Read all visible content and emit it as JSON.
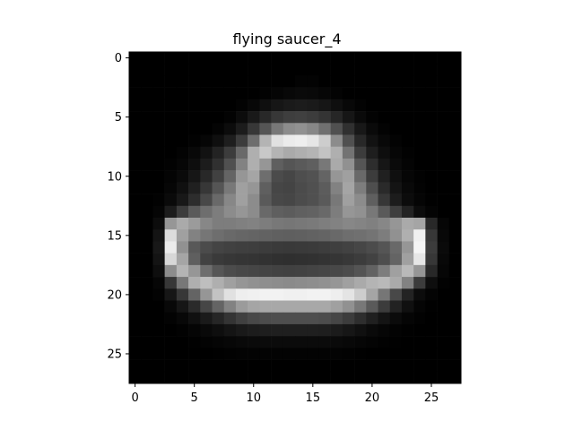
{
  "chart_data": {
    "type": "heatmap",
    "title": "flying saucer_4",
    "xlabel": "",
    "ylabel": "",
    "colormap": "gray",
    "rows": 28,
    "cols": 28,
    "xlim": [
      -0.5,
      27.5
    ],
    "ylim": [
      27.5,
      -0.5
    ],
    "y_axis_inverted": true,
    "grid": false,
    "xticks": [
      0,
      5,
      10,
      15,
      20,
      25
    ],
    "yticks": [
      0,
      5,
      10,
      15,
      20,
      25
    ],
    "matrix": [
      [
        0,
        0,
        0,
        0,
        0,
        0,
        0,
        0,
        0,
        0,
        0,
        0,
        0,
        0,
        0,
        0,
        0,
        0,
        0,
        0,
        0,
        0,
        0,
        0,
        0,
        0,
        0,
        0
      ],
      [
        0,
        0,
        0,
        0,
        0,
        0,
        0,
        0,
        0,
        0,
        0,
        0,
        0,
        0,
        0,
        0,
        0,
        0,
        0,
        0,
        0,
        0,
        0,
        0,
        0,
        0,
        0,
        0
      ],
      [
        0,
        0,
        0,
        0,
        0,
        0,
        0,
        0,
        0,
        0,
        0,
        0,
        0,
        0,
        3,
        3,
        0,
        0,
        0,
        0,
        0,
        0,
        0,
        0,
        0,
        0,
        0,
        0
      ],
      [
        0,
        0,
        0,
        0,
        0,
        0,
        0,
        0,
        0,
        0,
        0,
        2,
        5,
        8,
        10,
        9,
        6,
        3,
        0,
        0,
        0,
        0,
        0,
        0,
        0,
        0,
        0,
        0
      ],
      [
        0,
        0,
        0,
        0,
        0,
        0,
        0,
        0,
        0,
        3,
        8,
        15,
        22,
        26,
        28,
        26,
        22,
        15,
        8,
        3,
        0,
        0,
        0,
        0,
        0,
        0,
        0,
        0
      ],
      [
        0,
        0,
        0,
        0,
        0,
        0,
        0,
        0,
        3,
        12,
        25,
        40,
        55,
        62,
        64,
        60,
        52,
        38,
        22,
        10,
        3,
        0,
        0,
        0,
        0,
        0,
        0,
        0
      ],
      [
        0,
        0,
        0,
        0,
        0,
        0,
        0,
        4,
        12,
        28,
        55,
        85,
        120,
        140,
        145,
        135,
        112,
        80,
        48,
        24,
        10,
        3,
        0,
        0,
        0,
        0,
        0,
        0
      ],
      [
        0,
        0,
        0,
        0,
        0,
        2,
        6,
        15,
        30,
        60,
        110,
        180,
        225,
        235,
        238,
        230,
        205,
        140,
        80,
        40,
        18,
        8,
        3,
        0,
        0,
        0,
        0,
        0
      ],
      [
        0,
        0,
        0,
        0,
        3,
        8,
        18,
        35,
        60,
        105,
        175,
        200,
        180,
        170,
        175,
        180,
        195,
        175,
        115,
        60,
        30,
        14,
        6,
        2,
        0,
        0,
        0,
        0
      ],
      [
        0,
        0,
        0,
        2,
        6,
        14,
        28,
        48,
        80,
        130,
        175,
        150,
        95,
        85,
        90,
        95,
        120,
        170,
        145,
        85,
        45,
        22,
        10,
        4,
        0,
        0,
        0,
        0
      ],
      [
        0,
        0,
        0,
        4,
        10,
        22,
        40,
        65,
        100,
        150,
        165,
        110,
        75,
        70,
        78,
        82,
        100,
        150,
        160,
        105,
        60,
        32,
        15,
        6,
        2,
        0,
        0,
        0
      ],
      [
        0,
        0,
        0,
        6,
        16,
        32,
        55,
        85,
        120,
        160,
        150,
        95,
        70,
        68,
        75,
        80,
        92,
        130,
        165,
        125,
        78,
        42,
        20,
        9,
        3,
        0,
        0,
        0
      ],
      [
        0,
        0,
        2,
        10,
        24,
        45,
        72,
        105,
        135,
        160,
        140,
        90,
        72,
        70,
        76,
        80,
        90,
        120,
        160,
        140,
        95,
        55,
        28,
        12,
        5,
        1,
        0,
        0
      ],
      [
        0,
        0,
        5,
        28,
        60,
        90,
        110,
        125,
        140,
        150,
        140,
        105,
        95,
        92,
        96,
        98,
        105,
        125,
        150,
        145,
        120,
        90,
        62,
        35,
        12,
        4,
        0,
        0
      ],
      [
        0,
        0,
        12,
        150,
        170,
        155,
        135,
        125,
        125,
        128,
        130,
        125,
        120,
        118,
        120,
        122,
        126,
        130,
        135,
        132,
        128,
        135,
        150,
        170,
        165,
        40,
        6,
        0
      ],
      [
        0,
        0,
        20,
        220,
        160,
        130,
        118,
        110,
        105,
        102,
        100,
        98,
        96,
        95,
        96,
        98,
        100,
        105,
        110,
        112,
        116,
        125,
        145,
        175,
        240,
        55,
        8,
        0
      ],
      [
        0,
        0,
        24,
        235,
        145,
        88,
        75,
        68,
        65,
        63,
        62,
        60,
        58,
        57,
        58,
        59,
        61,
        63,
        66,
        70,
        76,
        85,
        105,
        150,
        245,
        60,
        10,
        0
      ],
      [
        0,
        0,
        20,
        215,
        165,
        95,
        66,
        58,
        55,
        53,
        52,
        50,
        48,
        47,
        48,
        49,
        51,
        53,
        56,
        60,
        66,
        78,
        100,
        160,
        230,
        55,
        8,
        0
      ],
      [
        0,
        0,
        14,
        140,
        180,
        150,
        110,
        86,
        76,
        72,
        70,
        68,
        66,
        65,
        66,
        68,
        70,
        72,
        76,
        84,
        98,
        125,
        160,
        185,
        150,
        40,
        6,
        0
      ],
      [
        0,
        0,
        6,
        55,
        120,
        175,
        190,
        175,
        160,
        150,
        145,
        142,
        140,
        138,
        140,
        142,
        145,
        150,
        160,
        170,
        180,
        185,
        170,
        130,
        60,
        14,
        2,
        0
      ],
      [
        0,
        0,
        3,
        22,
        55,
        100,
        150,
        195,
        225,
        238,
        240,
        242,
        242,
        240,
        240,
        242,
        242,
        238,
        228,
        205,
        165,
        118,
        72,
        35,
        12,
        4,
        0,
        0
      ],
      [
        0,
        0,
        0,
        8,
        22,
        42,
        70,
        100,
        130,
        155,
        165,
        168,
        168,
        168,
        168,
        168,
        168,
        160,
        145,
        120,
        90,
        60,
        34,
        16,
        5,
        1,
        0,
        0
      ],
      [
        0,
        0,
        0,
        3,
        8,
        16,
        26,
        38,
        52,
        64,
        72,
        76,
        78,
        78,
        78,
        78,
        76,
        70,
        60,
        46,
        32,
        20,
        11,
        5,
        2,
        0,
        0,
        0
      ],
      [
        0,
        0,
        0,
        0,
        2,
        5,
        9,
        14,
        20,
        25,
        28,
        30,
        31,
        31,
        31,
        31,
        30,
        27,
        22,
        16,
        10,
        6,
        3,
        1,
        0,
        0,
        0,
        0
      ],
      [
        0,
        0,
        0,
        0,
        0,
        1,
        3,
        5,
        7,
        9,
        10,
        11,
        11,
        11,
        11,
        11,
        11,
        10,
        8,
        6,
        4,
        2,
        1,
        0,
        0,
        0,
        0,
        0
      ],
      [
        0,
        0,
        0,
        0,
        0,
        0,
        0,
        1,
        2,
        3,
        3,
        3,
        3,
        3,
        3,
        3,
        3,
        3,
        2,
        1,
        0,
        0,
        0,
        0,
        0,
        0,
        0,
        0
      ],
      [
        0,
        0,
        0,
        0,
        0,
        0,
        0,
        0,
        0,
        0,
        0,
        0,
        0,
        0,
        0,
        0,
        0,
        0,
        0,
        0,
        0,
        0,
        0,
        0,
        0,
        0,
        0,
        0
      ],
      [
        0,
        0,
        0,
        0,
        0,
        0,
        0,
        0,
        0,
        0,
        0,
        0,
        0,
        0,
        0,
        0,
        0,
        0,
        0,
        0,
        0,
        0,
        0,
        0,
        0,
        0,
        0,
        0
      ]
    ]
  }
}
